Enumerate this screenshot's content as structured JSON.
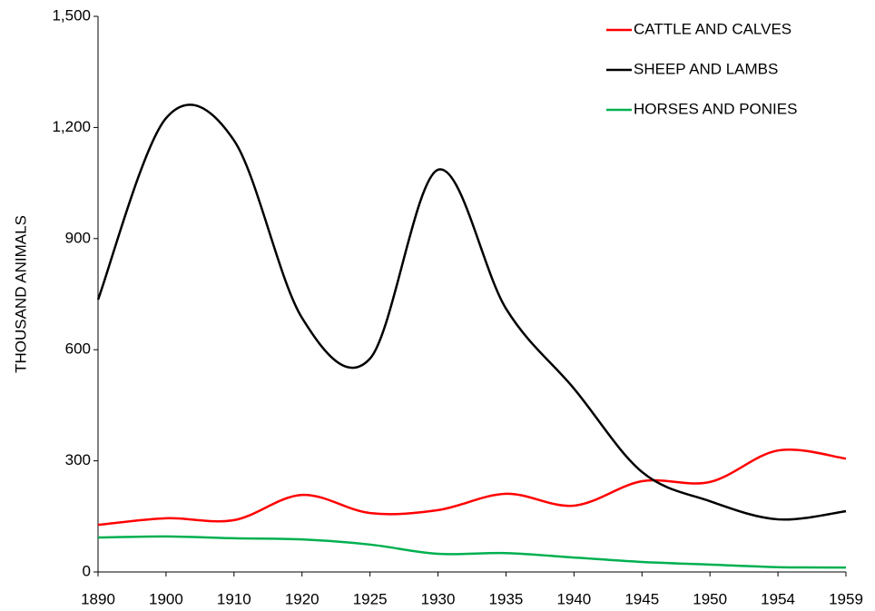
{
  "chart_data": {
    "type": "line",
    "y_label": "THOUSAND ANIMALS",
    "categories": [
      "1890",
      "1900",
      "1910",
      "1920",
      "1925",
      "1930",
      "1935",
      "1940",
      "1945",
      "1950",
      "1954",
      "1959"
    ],
    "series": [
      {
        "name": "CATTLE AND CALVES",
        "color": "#ff0000",
        "values": [
          127,
          145,
          140,
          208,
          159,
          167,
          211,
          179,
          245,
          243,
          328,
          306
        ]
      },
      {
        "name": "SHEEP AND LAMBS",
        "color": "#000000",
        "values": [
          735,
          1225,
          1165,
          686,
          576,
          1086,
          711,
          495,
          270,
          191,
          142,
          164
        ]
      },
      {
        "name": "HORSES AND PONIES",
        "color": "#00b050",
        "values": [
          93,
          96,
          91,
          88,
          74,
          49,
          51,
          39,
          27,
          20,
          13,
          12
        ]
      }
    ],
    "ylim": [
      0,
      1500
    ],
    "yticks": [
      0,
      300,
      600,
      900,
      {
        "value": 1200,
        "label": "1,200"
      },
      {
        "value": 1500,
        "label": "1,500"
      }
    ],
    "legend": "top-right",
    "grid": false,
    "smooth": true
  }
}
